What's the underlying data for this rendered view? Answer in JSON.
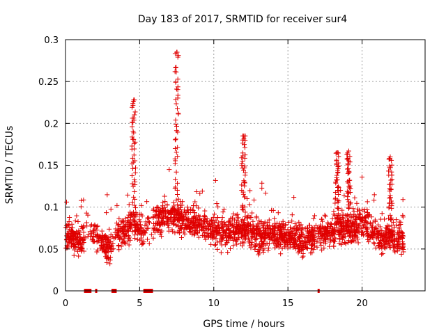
{
  "chart_data": {
    "type": "scatter",
    "title": "Day 183 of 2017, SRMTID for receiver sur4",
    "xlabel": "GPS time / hours",
    "ylabel": "SRMTID / TECUs",
    "xlim": [
      0,
      24.25
    ],
    "ylim": [
      0,
      0.3
    ],
    "xticks": [
      0,
      5,
      10,
      15,
      20
    ],
    "yticks": [
      0,
      0.05,
      0.1,
      0.15,
      0.2,
      0.25,
      0.3
    ],
    "xtick_labels": [
      "0",
      "5",
      "10",
      "15",
      "20"
    ],
    "ytick_labels": [
      "0",
      "0.05",
      "0.1",
      "0.15",
      "0.2",
      "0.25",
      "0.3"
    ],
    "grid": true,
    "marker": "+",
    "series_color": "#e00000",
    "x_range": [
      0,
      22.8
    ],
    "baseline_profile": [
      [
        0.0,
        0.07
      ],
      [
        0.5,
        0.062
      ],
      [
        1.0,
        0.058
      ],
      [
        1.5,
        0.068
      ],
      [
        2.0,
        0.07
      ],
      [
        2.5,
        0.058
      ],
      [
        3.0,
        0.05
      ],
      [
        3.5,
        0.068
      ],
      [
        4.0,
        0.07
      ],
      [
        4.5,
        0.085
      ],
      [
        5.0,
        0.075
      ],
      [
        5.5,
        0.072
      ],
      [
        6.0,
        0.085
      ],
      [
        7.0,
        0.09
      ],
      [
        8.0,
        0.085
      ],
      [
        9.0,
        0.08
      ],
      [
        10.0,
        0.07
      ],
      [
        11.0,
        0.07
      ],
      [
        12.0,
        0.075
      ],
      [
        13.0,
        0.065
      ],
      [
        14.0,
        0.07
      ],
      [
        15.0,
        0.065
      ],
      [
        16.0,
        0.06
      ],
      [
        17.0,
        0.065
      ],
      [
        18.0,
        0.075
      ],
      [
        19.0,
        0.07
      ],
      [
        20.0,
        0.085
      ],
      [
        21.0,
        0.065
      ],
      [
        22.0,
        0.065
      ],
      [
        22.8,
        0.06
      ]
    ],
    "peaks": [
      {
        "x": 4.6,
        "y": 0.228
      },
      {
        "x": 7.5,
        "y": 0.285
      },
      {
        "x": 12.0,
        "y": 0.185
      },
      {
        "x": 18.3,
        "y": 0.165
      },
      {
        "x": 19.1,
        "y": 0.167
      },
      {
        "x": 21.9,
        "y": 0.16
      }
    ],
    "zero_segments": [
      [
        1.25,
        1.75
      ],
      [
        2.0,
        2.1
      ],
      [
        3.1,
        3.45
      ],
      [
        5.25,
        5.9
      ],
      [
        17.0,
        17.1
      ]
    ]
  }
}
